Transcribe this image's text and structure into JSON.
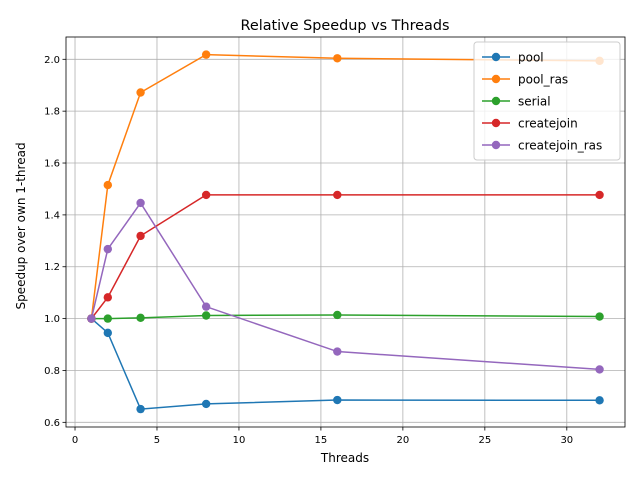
{
  "chart_data": {
    "type": "line",
    "title": "Relative Speedup vs Threads",
    "xlabel": "Threads",
    "ylabel": "Speedup over own 1-thread",
    "xlim": [
      -0.55,
      33.55
    ],
    "ylim": [
      0.582,
      2.086
    ],
    "xticks": [
      0,
      5,
      10,
      15,
      20,
      25,
      30
    ],
    "yticks": [
      0.6,
      0.8,
      1.0,
      1.2,
      1.4,
      1.6,
      1.8,
      2.0
    ],
    "xtick_labels": [
      "0",
      "5",
      "10",
      "15",
      "20",
      "25",
      "30"
    ],
    "ytick_labels": [
      "0.6",
      "0.8",
      "1.0",
      "1.2",
      "1.4",
      "1.6",
      "1.8",
      "2.0"
    ],
    "grid": true,
    "legend_position": "top-right",
    "x": [
      1,
      2,
      4,
      8,
      16,
      32
    ],
    "series": [
      {
        "name": "pool",
        "color": "#1f77b4",
        "values": [
          1.0,
          0.945,
          0.651,
          0.671,
          0.686,
          0.685
        ]
      },
      {
        "name": "pool_ras",
        "color": "#ff7f0e",
        "values": [
          1.0,
          1.515,
          1.872,
          2.018,
          2.004,
          1.994
        ]
      },
      {
        "name": "serial",
        "color": "#2ca02c",
        "values": [
          1.0,
          1.0,
          1.003,
          1.012,
          1.014,
          1.008
        ]
      },
      {
        "name": "createjoin",
        "color": "#d62728",
        "values": [
          1.0,
          1.082,
          1.319,
          1.477,
          1.477,
          1.477
        ]
      },
      {
        "name": "createjoin_ras",
        "color": "#9467bd",
        "values": [
          1.0,
          1.268,
          1.446,
          1.046,
          0.873,
          0.804
        ]
      }
    ]
  }
}
